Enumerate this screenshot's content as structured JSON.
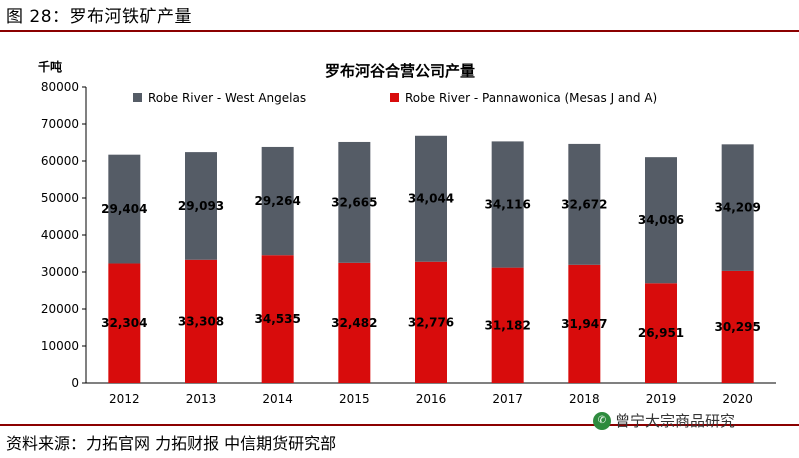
{
  "figure_title": "图 28：罗布河铁矿产量",
  "source_text": "资料来源：力拓官网 力拓财报 中信期货研究部",
  "watermark_text": "曾宁大宗商品研究",
  "colors": {
    "west_angelas": "#555C66",
    "pannawonica": "#D80C0C",
    "rule": "#8B0000"
  },
  "chart_data": {
    "type": "bar",
    "stacked": true,
    "title": "罗布河谷合营公司产量",
    "unit_label": "千吨",
    "categories": [
      "2012",
      "2013",
      "2014",
      "2015",
      "2016",
      "2017",
      "2018",
      "2019",
      "2020"
    ],
    "ylim": [
      0,
      80000
    ],
    "yticks": [
      0,
      10000,
      20000,
      30000,
      40000,
      50000,
      60000,
      70000,
      80000
    ],
    "series": [
      {
        "name": "Robe River - Pannawonica (Mesas J and A)",
        "color": "#D80C0C",
        "values": [
          32304,
          33308,
          34535,
          32482,
          32776,
          31182,
          31947,
          26951,
          30295
        ],
        "labels": [
          "32,304",
          "33,308",
          "34,535",
          "32,482",
          "32,776",
          "31,182",
          "31,947",
          "26,951",
          "30,295"
        ]
      },
      {
        "name": "Robe River - West Angelas",
        "color": "#555C66",
        "values": [
          29404,
          29093,
          29264,
          32665,
          34044,
          34116,
          32672,
          34086,
          34209
        ],
        "labels": [
          "29,404",
          "29,093",
          "29,264",
          "32,665",
          "34,044",
          "34,116",
          "32,672",
          "34,086",
          "34,209"
        ]
      }
    ],
    "legend_order": [
      1,
      0
    ],
    "legend_position": "top"
  }
}
